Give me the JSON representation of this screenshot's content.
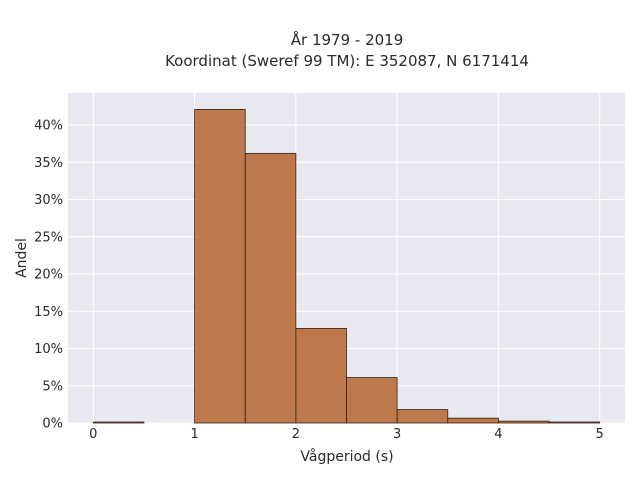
{
  "chart_data": {
    "type": "bar",
    "title_line1": "År 1979 - 2019",
    "title_line2": "Koordinat (Sweref 99 TM): E 352087, N 6171414",
    "xlabel": "Vågperiod (s)",
    "ylabel": "Andel",
    "xlim": [
      -0.25,
      5.25
    ],
    "ylim": [
      0,
      0.443
    ],
    "xticks": [
      0,
      1,
      2,
      3,
      4,
      5
    ],
    "xtick_labels": [
      "0",
      "1",
      "2",
      "3",
      "4",
      "5"
    ],
    "yticks": [
      0,
      0.05,
      0.1,
      0.15,
      0.2,
      0.25,
      0.3,
      0.35,
      0.4
    ],
    "ytick_labels": [
      "0%",
      "5%",
      "10%",
      "15%",
      "20%",
      "25%",
      "30%",
      "35%",
      "40%"
    ],
    "grid": true,
    "bar_color": "#b5652f",
    "bar_opacity": 0.85,
    "bar_edge_color": "#3a2010",
    "plot_background": "#e8e8f0",
    "bins": [
      {
        "x0": 0.0,
        "x1": 0.5,
        "value": 0.0004
      },
      {
        "x0": 0.5,
        "x1": 1.0,
        "value": 0.0
      },
      {
        "x0": 1.0,
        "x1": 1.5,
        "value": 0.421
      },
      {
        "x0": 1.5,
        "x1": 2.0,
        "value": 0.362
      },
      {
        "x0": 2.0,
        "x1": 2.5,
        "value": 0.127
      },
      {
        "x0": 2.5,
        "x1": 3.0,
        "value": 0.061
      },
      {
        "x0": 3.0,
        "x1": 3.5,
        "value": 0.018
      },
      {
        "x0": 3.5,
        "x1": 4.0,
        "value": 0.0065
      },
      {
        "x0": 4.0,
        "x1": 4.5,
        "value": 0.0025
      },
      {
        "x0": 4.5,
        "x1": 5.0,
        "value": 0.0008
      }
    ]
  }
}
